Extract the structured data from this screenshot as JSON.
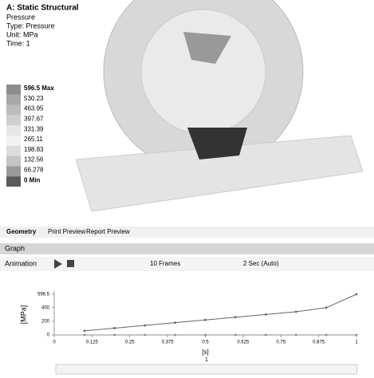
{
  "header": {
    "title": "A: Static Structural",
    "lines": [
      "Pressure",
      "Type: Pressure",
      "Unit: MPa",
      "Time: 1"
    ]
  },
  "legend": [
    "596.5 Max",
    "530.23",
    "463.95",
    "397.67",
    "331.39",
    "265.11",
    "198.83",
    "132.56",
    "66.278",
    "0 Min"
  ],
  "tabs": [
    "Geometry",
    "Print Preview",
    "Report Preview"
  ],
  "panel": {
    "title": "Graph",
    "animation": "Animation",
    "frames": "10 Frames",
    "speed": "2 Sec (Auto)",
    "marker": "1"
  },
  "chart_data": {
    "type": "line",
    "ylabel": "[MPa]",
    "xlabel": "[s]",
    "x": [
      0.1,
      0.2,
      0.3,
      0.4,
      0.5,
      0.6,
      0.7,
      0.8,
      0.9,
      1
    ],
    "series": [
      {
        "color": "#666666",
        "values": [
          60,
          100,
          140,
          180,
          220,
          260,
          300,
          340,
          400,
          596.5
        ]
      },
      {
        "color": "#888888",
        "values": [
          0,
          0,
          0,
          0,
          0,
          0,
          0,
          0,
          0,
          0
        ]
      }
    ],
    "xlim": [
      0,
      1
    ],
    "xticks": [
      0,
      0.125,
      0.25,
      0.375,
      0.5,
      0.625,
      0.75,
      0.875,
      1
    ],
    "ylim": [
      0,
      596.5
    ],
    "yticks": [
      0,
      200,
      400,
      596.5
    ]
  }
}
